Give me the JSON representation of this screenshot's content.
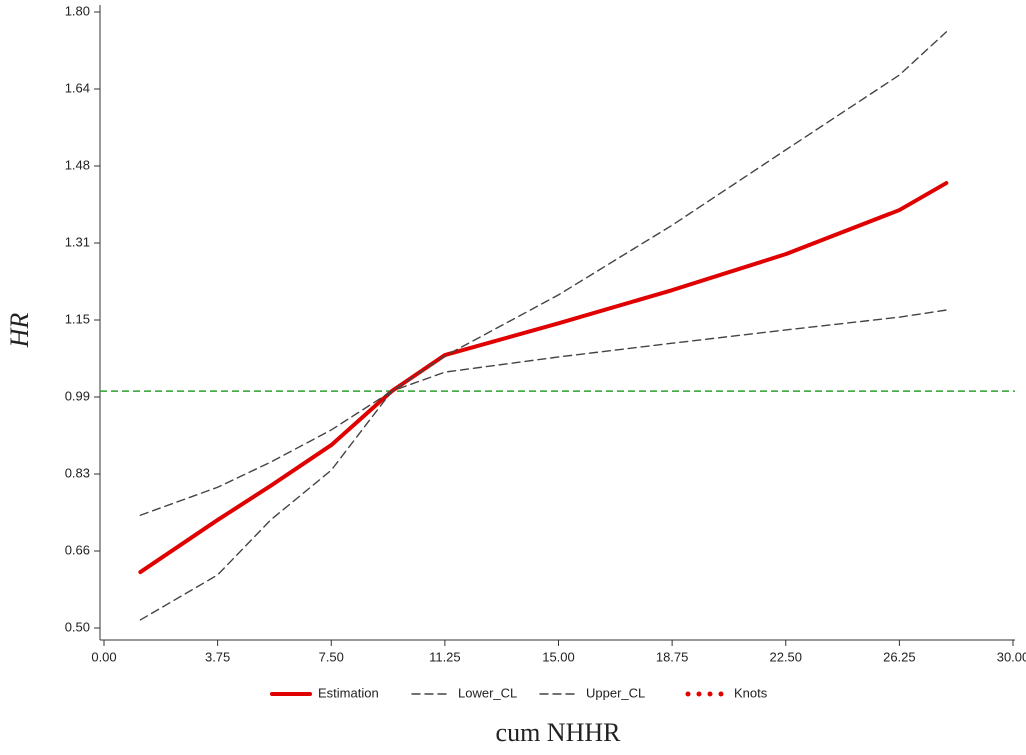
{
  "chart_data": {
    "type": "line",
    "x_label": "cum NHHR",
    "y_label": "HR",
    "x": [
      1.2,
      3.75,
      5.5,
      7.5,
      9.5,
      11.25,
      15,
      18.75,
      22.5,
      26.25,
      27.8
    ],
    "series": [
      {
        "name": "Estimation",
        "color": "#e00000",
        "style": "solid",
        "values": [
          0.618,
          0.728,
          0.8,
          0.886,
          1.0,
          1.076,
          1.143,
          1.213,
          1.289,
          1.382,
          1.439
        ]
      },
      {
        "name": "Lower_CL",
        "color": "#444444",
        "style": "dashed",
        "values": [
          0.517,
          0.612,
          0.728,
          0.833,
          1.0,
          1.04,
          1.072,
          1.101,
          1.129,
          1.156,
          1.171
        ]
      },
      {
        "name": "Upper_CL",
        "color": "#444444",
        "style": "dashed",
        "values": [
          0.738,
          0.797,
          0.85,
          0.918,
          1.0,
          1.074,
          1.203,
          1.35,
          1.509,
          1.667,
          1.758
        ]
      },
      {
        "name": "Knots",
        "color": "#e00000",
        "style": "dotted",
        "values": [
          null,
          null,
          null,
          null,
          null,
          null,
          null,
          null,
          null,
          null,
          null
        ]
      }
    ],
    "reference_line": {
      "value": 1,
      "color": "#2ca02c"
    },
    "xlim": [
      0,
      30
    ],
    "xticks": [
      {
        "value": 0,
        "label": "0.00"
      },
      {
        "value": 3.75,
        "label": "3.75"
      },
      {
        "value": 7.5,
        "label": "7.50"
      },
      {
        "value": 11.25,
        "label": "11.25"
      },
      {
        "value": 15,
        "label": "15.00"
      },
      {
        "value": 18.75,
        "label": "18.75"
      },
      {
        "value": 22.5,
        "label": "22.50"
      },
      {
        "value": 26.25,
        "label": "26.25"
      },
      {
        "value": 30,
        "label": "30.00"
      }
    ],
    "ylim": [
      0.5,
      1.8
    ],
    "yticks": [
      {
        "value": 0.5,
        "label": "0.50"
      },
      {
        "value": 0.6625,
        "label": "0.66"
      },
      {
        "value": 0.825,
        "label": "0.83"
      },
      {
        "value": 0.9875,
        "label": "0.99"
      },
      {
        "value": 1.15,
        "label": "1.15"
      },
      {
        "value": 1.3125,
        "label": "1.31"
      },
      {
        "value": 1.475,
        "label": "1.48"
      },
      {
        "value": 1.6375,
        "label": "1.64"
      },
      {
        "value": 1.8,
        "label": "1.80"
      }
    ],
    "legend": "bottom"
  }
}
